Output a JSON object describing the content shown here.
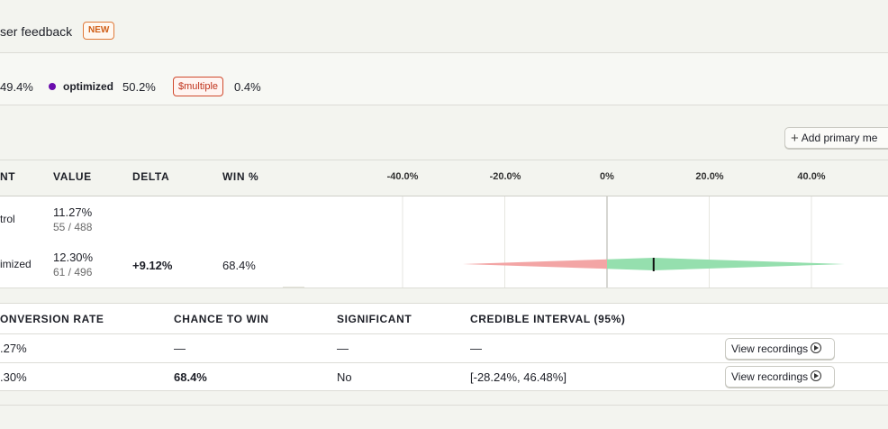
{
  "header": {
    "feedback_label": "ser feedback",
    "new_badge": "NEW"
  },
  "variants": [
    {
      "name": "",
      "percent": "49.4%"
    },
    {
      "name": "optimized",
      "percent": "50.2%",
      "color": "#6a0dad"
    },
    {
      "name": "$multiple",
      "percent": "0.4%"
    }
  ],
  "add_metric_label": "Add primary me",
  "metric_table": {
    "headers": [
      "NT",
      "VALUE",
      "DELTA",
      "WIN %"
    ],
    "axis_ticks": [
      "-40.0%",
      "-20.0%",
      "0%",
      "20.0%",
      "40.0%"
    ],
    "rows": [
      {
        "variant": "trol",
        "value": "11.27%",
        "counts": "55 / 488",
        "delta": "",
        "win": ""
      },
      {
        "variant": "imized",
        "value": "12.30%",
        "counts": "61 / 496",
        "delta": "+9.12%",
        "win": "68.4%"
      }
    ],
    "interval": {
      "low": -28.24,
      "high": 46.48,
      "mean": 9.12,
      "axis_min": -48,
      "axis_max": 55
    }
  },
  "results_table": {
    "headers": [
      "ONVERSION RATE",
      "CHANCE TO WIN",
      "SIGNIFICANT",
      "CREDIBLE INTERVAL (95%)"
    ],
    "rows": [
      {
        "conversion": ".27%",
        "chance": "—",
        "significant": "—",
        "interval": "—",
        "button": "View recordings"
      },
      {
        "conversion": ".30%",
        "chance": "68.4%",
        "significant": "No",
        "interval": "[-28.24%, 46.48%]",
        "button": "View recordings"
      }
    ]
  },
  "colors": {
    "accent_badge": "#d05e16",
    "negative": "#f3a0a0",
    "positive": "#90dca8"
  }
}
